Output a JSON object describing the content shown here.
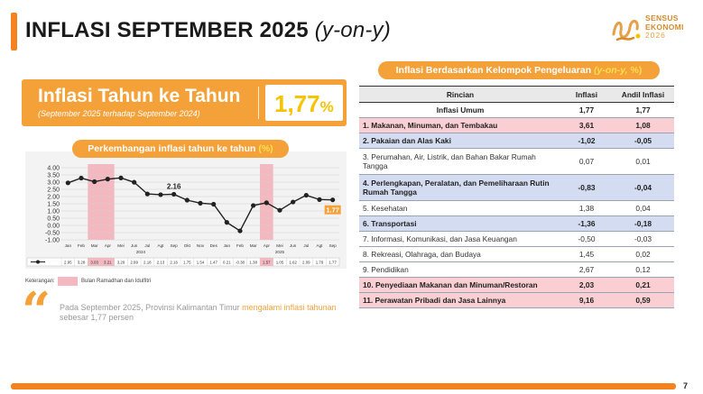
{
  "header": {
    "title_main": "INFLASI SEPTEMBER 2025",
    "title_italic": "(y-on-y)",
    "logo": {
      "line1": "SENSUS",
      "line2": "EKONOMI",
      "line3": "2026",
      "icon": "sensus-ekonomi-logo-icon"
    }
  },
  "yoy": {
    "title": "Inflasi Tahun ke Tahun",
    "subtitle": "(September 2025 terhadap September 2024)",
    "value": "1,77",
    "unit": "%"
  },
  "chart_section": {
    "pill_text": "Perkembangan inflasi tahun ke tahun",
    "pill_unit": "(%)",
    "keterangan_label": "Keterangan:",
    "legend_label": "Bulan Ramadhan dan Idulfitri",
    "highlight_color": "#f4b8c0"
  },
  "chart_data": {
    "type": "line",
    "title": "Perkembangan inflasi tahun ke tahun (%)",
    "ylim": [
      -1.0,
      4.0
    ],
    "y_ticks": [
      "4.00",
      "3.50",
      "3.00",
      "2.50",
      "2.00",
      "1.50",
      "1.00",
      "0.50",
      "0.00",
      "-0.50",
      "-1.00"
    ],
    "categories": [
      "Jan",
      "Feb",
      "Mar",
      "Apr",
      "Mei",
      "Jun",
      "Jul",
      "Agt",
      "Sep",
      "Okt",
      "Nov",
      "Des",
      "Jan",
      "Feb",
      "Mar",
      "Apr",
      "Mei",
      "Jun",
      "Jul",
      "Agt",
      "Sep"
    ],
    "year_labels": [
      {
        "label": "2024",
        "start": 0,
        "end": 11
      },
      {
        "label": "2025",
        "start": 12,
        "end": 20
      }
    ],
    "series": [
      {
        "values": [
          2.95,
          3.28,
          3.03,
          3.21,
          3.29,
          2.99,
          2.18,
          2.13,
          2.16,
          1.75,
          1.54,
          1.47,
          0.21,
          -0.38,
          1.38,
          1.57,
          1.05,
          1.62,
          2.09,
          1.79,
          1.77
        ],
        "table_labels": [
          "2.95",
          "3.28",
          "3.03",
          "3.21",
          "3.29",
          "2.99",
          "2.18",
          "2.13",
          "2.16",
          "1.75",
          "1.54",
          "1.47",
          "0.21",
          "-0.38",
          "1.38",
          "1.57",
          "1.05",
          "1.62",
          "2.09",
          "1.79",
          "1.77"
        ]
      }
    ],
    "highlight_indices": [
      2,
      3,
      15
    ],
    "annotations": [
      {
        "index": 8,
        "text": "2.16"
      },
      {
        "index": 20,
        "text": "1.77"
      }
    ],
    "grid": true,
    "line_color": "#222222",
    "marker_color": "#222222",
    "annotation_last_color": "#f5a13a"
  },
  "quote": {
    "text_before": "Pada September 2025, Provinsi Kalimantan Timur ",
    "text_highlight": "mengalami inflasi tahunan",
    "text_after": " sebesar 1,77 persen"
  },
  "table": {
    "pill_text": "Inflasi Berdasarkan Kelompok Pengeluaran",
    "pill_italic": "(y-on-y,",
    "pill_unit": "%)",
    "headers": [
      "Rincian",
      "Inflasi",
      "Andil Inflasi"
    ],
    "umum": {
      "name": "Inflasi Umum",
      "inflasi": "1,77",
      "andil": "1,77"
    },
    "rows": [
      {
        "name": "1.  Makanan, Minuman, dan Tembakau",
        "inflasi": "3,61",
        "andil": "1,08",
        "style": "pink",
        "tall": false
      },
      {
        "name": "2.  Pakaian dan Alas Kaki",
        "inflasi": "-1,02",
        "andil": "-0,05",
        "style": "blue",
        "tall": false
      },
      {
        "name": "3.  Perumahan, Air, Listrik, dan Bahan Bakar Rumah Tangga",
        "inflasi": "0,07",
        "andil": "0,01",
        "style": "plain",
        "tall": true
      },
      {
        "name": "4.  Perlengkapan, Peralatan, dan Pemeliharaan Rutin Rumah Tangga",
        "inflasi": "-0,83",
        "andil": "-0,04",
        "style": "blue",
        "tall": true
      },
      {
        "name": "5.  Kesehatan",
        "inflasi": "1,38",
        "andil": "0,04",
        "style": "plain",
        "tall": false
      },
      {
        "name": "6.  Transportasi",
        "inflasi": "-1,36",
        "andil": "-0,18",
        "style": "blue",
        "tall": false
      },
      {
        "name": "7.  Informasi, Komunikasi, dan Jasa Keuangan",
        "inflasi": "-0,50",
        "andil": "-0,03",
        "style": "plain",
        "tall": false
      },
      {
        "name": "8.  Rekreasi, Olahraga, dan Budaya",
        "inflasi": "1,45",
        "andil": "0,02",
        "style": "plain",
        "tall": false
      },
      {
        "name": "9.  Pendidikan",
        "inflasi": "2,67",
        "andil": "0,12",
        "style": "plain",
        "tall": false
      },
      {
        "name": "10. Penyediaan Makanan dan Minuman/Restoran",
        "inflasi": "2,03",
        "andil": "0,21",
        "style": "pink",
        "tall": false
      },
      {
        "name": "11. Perawatan Pribadi dan Jasa Lainnya",
        "inflasi": "9,16",
        "andil": "0,59",
        "style": "pink",
        "tall": false
      }
    ]
  },
  "footer": {
    "page_number": "7"
  },
  "colors": {
    "accent": "#f5821f",
    "accent_light": "#f5a13a",
    "yoy_value": "#f5c300",
    "pink": "#f9cfd4",
    "blue": "#d3dcf0"
  }
}
